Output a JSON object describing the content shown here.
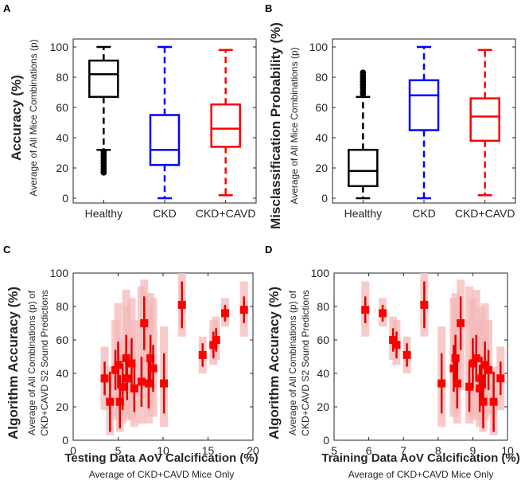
{
  "panels": {
    "a": {
      "letter": "A",
      "ylabel": "Accuracy (%)",
      "ylabel_sub": "Average of All Mice Combinations (p)"
    },
    "b": {
      "letter": "B",
      "ylabel": "Misclassification Probability (%)",
      "ylabel_sub": "Average of All Mice Combinations (p)"
    },
    "c": {
      "letter": "C",
      "ylabel": "Algorithm Accuracy (%)",
      "ylabel_sub1": "Average of All Combinations (p) of",
      "ylabel_sub2": "CKD+CAVD S2 Sound Predictions",
      "xlabel": "Testing Data AoV Calcification (%)",
      "xlabel_sub": "Average of CKD+CAVD Mice Only"
    },
    "d": {
      "letter": "D",
      "ylabel": "Algorithm Accuracy (%)",
      "ylabel_sub1": "Average of All Combinations (p) of",
      "ylabel_sub2": "CKD+CAVD S2 Sound Predictions",
      "xlabel": "Training Data AoV Calcification (%)",
      "xlabel_sub": "Average of CKD+CAVD Mice Only"
    }
  },
  "chart_data": [
    {
      "id": "a",
      "type": "box",
      "categories": [
        "Healthy",
        "CKD",
        "CKD+CAVD"
      ],
      "colors": [
        "#000000",
        "#0000ff",
        "#ff0000"
      ],
      "ylim": [
        0,
        100
      ],
      "yticks": [
        0,
        20,
        40,
        60,
        80,
        100
      ],
      "boxes": [
        {
          "min": 32,
          "q1": 67,
          "median": 82,
          "q3": 91,
          "max": 100,
          "outliers": [
            31,
            29,
            27,
            25,
            23,
            21,
            19,
            17
          ]
        },
        {
          "min": 0,
          "q1": 22,
          "median": 32,
          "q3": 55,
          "max": 100,
          "outliers": []
        },
        {
          "min": 2,
          "q1": 34,
          "median": 46,
          "q3": 62,
          "max": 98,
          "outliers": []
        }
      ]
    },
    {
      "id": "b",
      "type": "box",
      "categories": [
        "Healthy",
        "CKD",
        "CKD+CAVD"
      ],
      "colors": [
        "#000000",
        "#0000ff",
        "#ff0000"
      ],
      "ylim": [
        0,
        100
      ],
      "yticks": [
        0,
        20,
        40,
        60,
        80,
        100
      ],
      "boxes": [
        {
          "min": 0,
          "q1": 8,
          "median": 18,
          "q3": 32,
          "max": 67,
          "outliers": [
            69,
            71,
            73,
            75,
            77,
            79,
            81,
            83
          ]
        },
        {
          "min": 0,
          "q1": 45,
          "median": 68,
          "q3": 78,
          "max": 100,
          "outliers": []
        },
        {
          "min": 2,
          "q1": 38,
          "median": 54,
          "q3": 66,
          "max": 98,
          "outliers": []
        }
      ]
    },
    {
      "id": "c",
      "type": "scatter",
      "xlim": [
        0,
        20
      ],
      "xticks": [
        0,
        5,
        10,
        15,
        20
      ],
      "ylim": [
        0,
        100
      ],
      "yticks": [
        0,
        20,
        40,
        60,
        80,
        100
      ],
      "points": [
        {
          "x": 3.5,
          "y": 37,
          "err": 10,
          "band": [
            18,
            56
          ]
        },
        {
          "x": 4.1,
          "y": 23,
          "err": 18,
          "band": [
            3,
            44
          ]
        },
        {
          "x": 4.7,
          "y": 42,
          "err": 12,
          "band": [
            15,
            72
          ]
        },
        {
          "x": 5.0,
          "y": 45,
          "err": 14,
          "band": [
            12,
            82
          ]
        },
        {
          "x": 5.2,
          "y": 23,
          "err": 16,
          "band": [
            5,
            50
          ]
        },
        {
          "x": 5.5,
          "y": 32,
          "err": 14,
          "band": [
            10,
            60
          ]
        },
        {
          "x": 5.9,
          "y": 49,
          "err": 14,
          "band": [
            15,
            90
          ]
        },
        {
          "x": 6.0,
          "y": 37,
          "err": 13,
          "band": [
            12,
            80
          ]
        },
        {
          "x": 6.5,
          "y": 46,
          "err": 15,
          "band": [
            12,
            85
          ]
        },
        {
          "x": 6.8,
          "y": 31,
          "err": 14,
          "band": [
            8,
            72
          ]
        },
        {
          "x": 7.6,
          "y": 35,
          "err": 15,
          "band": [
            10,
            92
          ]
        },
        {
          "x": 7.9,
          "y": 70,
          "err": 16,
          "band": [
            30,
            96
          ]
        },
        {
          "x": 8.4,
          "y": 34,
          "err": 15,
          "band": [
            10,
            80
          ]
        },
        {
          "x": 8.6,
          "y": 49,
          "err": 14,
          "band": [
            18,
            88
          ]
        },
        {
          "x": 8.9,
          "y": 43,
          "err": 14,
          "band": [
            14,
            85
          ]
        },
        {
          "x": 10.1,
          "y": 34,
          "err": 18,
          "band": [
            8,
            68
          ]
        },
        {
          "x": 12.1,
          "y": 81,
          "err": 14,
          "band": [
            62,
            100
          ]
        },
        {
          "x": 14.4,
          "y": 51,
          "err": 7,
          "band": [
            40,
            62
          ]
        },
        {
          "x": 15.6,
          "y": 57,
          "err": 8,
          "band": [
            45,
            72
          ]
        },
        {
          "x": 15.9,
          "y": 60,
          "err": 7,
          "band": [
            48,
            74
          ]
        },
        {
          "x": 16.9,
          "y": 76,
          "err": 5,
          "band": [
            68,
            85
          ]
        },
        {
          "x": 19.0,
          "y": 78,
          "err": 8,
          "band": [
            62,
            95
          ]
        }
      ]
    },
    {
      "id": "d",
      "type": "scatter",
      "xlim": [
        5,
        10
      ],
      "xticks": [
        5,
        6,
        7,
        8,
        9,
        10
      ],
      "ylim": [
        0,
        100
      ],
      "yticks": [
        0,
        20,
        40,
        60,
        80,
        100
      ],
      "points": [
        {
          "x": 5.9,
          "y": 78,
          "err": 8,
          "band": [
            62,
            95
          ]
        },
        {
          "x": 6.4,
          "y": 76,
          "err": 5,
          "band": [
            68,
            85
          ]
        },
        {
          "x": 6.7,
          "y": 60,
          "err": 7,
          "band": [
            48,
            74
          ]
        },
        {
          "x": 6.8,
          "y": 57,
          "err": 8,
          "band": [
            45,
            72
          ]
        },
        {
          "x": 7.1,
          "y": 51,
          "err": 7,
          "band": [
            40,
            62
          ]
        },
        {
          "x": 7.6,
          "y": 81,
          "err": 14,
          "band": [
            62,
            100
          ]
        },
        {
          "x": 8.1,
          "y": 34,
          "err": 18,
          "band": [
            8,
            68
          ]
        },
        {
          "x": 8.45,
          "y": 43,
          "err": 14,
          "band": [
            14,
            85
          ]
        },
        {
          "x": 8.5,
          "y": 49,
          "err": 14,
          "band": [
            18,
            88
          ]
        },
        {
          "x": 8.55,
          "y": 34,
          "err": 15,
          "band": [
            10,
            80
          ]
        },
        {
          "x": 8.65,
          "y": 70,
          "err": 16,
          "band": [
            30,
            96
          ]
        },
        {
          "x": 8.9,
          "y": 32,
          "err": 15,
          "band": [
            10,
            92
          ]
        },
        {
          "x": 9.0,
          "y": 46,
          "err": 15,
          "band": [
            12,
            85
          ]
        },
        {
          "x": 9.1,
          "y": 49,
          "err": 14,
          "band": [
            15,
            90
          ]
        },
        {
          "x": 9.2,
          "y": 31,
          "err": 14,
          "band": [
            8,
            72
          ]
        },
        {
          "x": 9.25,
          "y": 37,
          "err": 13,
          "band": [
            12,
            80
          ]
        },
        {
          "x": 9.3,
          "y": 23,
          "err": 16,
          "band": [
            5,
            50
          ]
        },
        {
          "x": 9.35,
          "y": 45,
          "err": 14,
          "band": [
            12,
            82
          ]
        },
        {
          "x": 9.45,
          "y": 42,
          "err": 12,
          "band": [
            15,
            72
          ]
        },
        {
          "x": 9.6,
          "y": 23,
          "err": 18,
          "band": [
            3,
            44
          ]
        },
        {
          "x": 9.8,
          "y": 37,
          "err": 10,
          "band": [
            18,
            56
          ]
        }
      ]
    }
  ]
}
